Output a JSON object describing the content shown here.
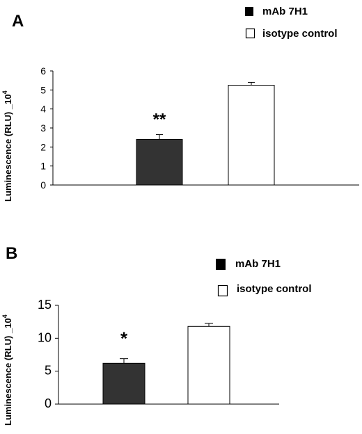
{
  "chart_data": [
    {
      "type": "bar",
      "panel": "A",
      "categories": [
        "mAb 7H1",
        "isotype control"
      ],
      "values": [
        2.4,
        5.25
      ],
      "errors": [
        0.25,
        0.15
      ],
      "colors": [
        "#333333",
        "#ffffff"
      ],
      "significance": [
        "**",
        ""
      ],
      "ylabel": "Luminescence (RLU) _10",
      "ylabel_exponent": "4",
      "ylim": [
        0,
        6
      ],
      "yticks": [
        "0",
        "1",
        "2",
        "3",
        "4",
        "5",
        "6"
      ],
      "legend": [
        {
          "label": "mAb 7H1",
          "color": "#000000"
        },
        {
          "label": "isotype control",
          "color": "#ffffff"
        }
      ],
      "legend_position": "top-right"
    },
    {
      "type": "bar",
      "panel": "B",
      "categories": [
        "mAb 7H1",
        "isotype control"
      ],
      "values": [
        6.2,
        11.8
      ],
      "errors": [
        0.7,
        0.45
      ],
      "colors": [
        "#333333",
        "#ffffff"
      ],
      "significance": [
        "*",
        ""
      ],
      "ylabel": "Luminescence (RLU) _10",
      "ylabel_exponent": "4",
      "ylim": [
        0,
        15
      ],
      "yticks": [
        "0",
        "5",
        "10",
        "15"
      ],
      "legend": [
        {
          "label": "mAb 7H1",
          "color": "#000000"
        },
        {
          "label": "isotype control",
          "color": "#ffffff"
        }
      ],
      "legend_position": "top-right"
    }
  ]
}
